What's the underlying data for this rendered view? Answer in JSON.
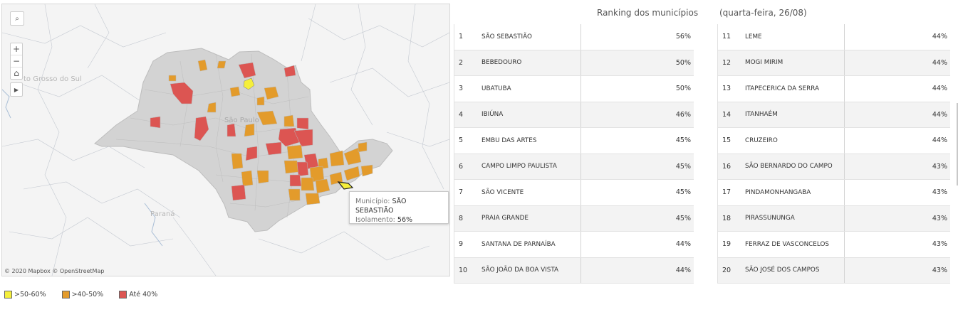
{
  "map": {
    "attribution": "© 2020 Mapbox © OpenStreetMap",
    "labels": {
      "state_ms": "to Grosso do Sul",
      "city_sp": "São Paulo",
      "state_pr": "Paraná"
    },
    "controls": {
      "search_icon": "⌕",
      "zoom_in": "+",
      "zoom_out": "−",
      "home_icon": "⌂",
      "play_icon": "▶"
    },
    "tooltip": {
      "municipio_label": "Município:",
      "municipio_value": "SÃO SEBASTIÃO",
      "isolamento_label": "Isolamento:",
      "isolamento_value": "56%"
    }
  },
  "ranking": {
    "title": "Ranking dos municípios",
    "date": "(quarta-feira, 26/08)",
    "left": [
      {
        "rank": "1",
        "name": "SÃO SEBASTIÃO",
        "pct": "56%"
      },
      {
        "rank": "2",
        "name": "BEBEDOURO",
        "pct": "50%"
      },
      {
        "rank": "3",
        "name": "UBATUBA",
        "pct": "50%"
      },
      {
        "rank": "4",
        "name": "IBIÚNA",
        "pct": "46%"
      },
      {
        "rank": "5",
        "name": "EMBU DAS ARTES",
        "pct": "45%"
      },
      {
        "rank": "6",
        "name": "CAMPO LIMPO PAULISTA",
        "pct": "45%"
      },
      {
        "rank": "7",
        "name": "SÃO VICENTE",
        "pct": "45%"
      },
      {
        "rank": "8",
        "name": "PRAIA GRANDE",
        "pct": "45%"
      },
      {
        "rank": "9",
        "name": "SANTANA DE PARNAÍBA",
        "pct": "44%"
      },
      {
        "rank": "10",
        "name": "SÃO JOÃO DA BOA VISTA",
        "pct": "44%"
      }
    ],
    "right": [
      {
        "rank": "11",
        "name": "LEME",
        "pct": "44%"
      },
      {
        "rank": "12",
        "name": "MOGI MIRIM",
        "pct": "44%"
      },
      {
        "rank": "13",
        "name": "ITAPECERICA DA SERRA",
        "pct": "44%"
      },
      {
        "rank": "14",
        "name": "ITANHAÉM",
        "pct": "44%"
      },
      {
        "rank": "15",
        "name": "CRUZEIRO",
        "pct": "44%"
      },
      {
        "rank": "16",
        "name": "SÃO BERNARDO DO CAMPO",
        "pct": "43%"
      },
      {
        "rank": "17",
        "name": "PINDAMONHANGABA",
        "pct": "43%"
      },
      {
        "rank": "18",
        "name": "PIRASSUNUNGA",
        "pct": "43%"
      },
      {
        "rank": "19",
        "name": "FERRAZ DE VASCONCELOS",
        "pct": "43%"
      },
      {
        "rank": "20",
        "name": "SÃO JOSÉ DOS CAMPOS",
        "pct": "43%"
      }
    ]
  },
  "legend": [
    {
      "label": ">50-60%",
      "color": "#f5ef3b"
    },
    {
      "label": ">40-50%",
      "color": "#e39b2b"
    },
    {
      "label": "Até 40%",
      "color": "#dc5552"
    }
  ],
  "colors": {
    "state_fill": "#d3d3d3",
    "yellow": "#f5ef3b",
    "orange": "#e39b2b",
    "red": "#dc5552"
  }
}
